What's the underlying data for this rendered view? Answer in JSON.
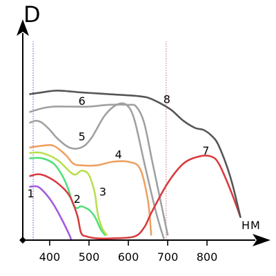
{
  "chart_data": {
    "type": "line",
    "ylabel": "D",
    "xunit_label": "НМ",
    "xlim": [
      340,
      895
    ],
    "ylim": [
      0,
      1
    ],
    "x_ticks": [
      400,
      500,
      600,
      700,
      800
    ],
    "reference_lines": [
      {
        "x": 358,
        "color": "#7b72c9"
      },
      {
        "x": 696,
        "color": "#d8868b"
      }
    ],
    "grid": false,
    "legend": "none",
    "series": [
      {
        "label": "1",
        "color": "#a25ae0",
        "x": [
          350,
          370,
          390,
          410,
          430,
          450,
          455
        ],
        "y": [
          0.3,
          0.3,
          0.26,
          0.2,
          0.12,
          0.03,
          0.0
        ]
      },
      {
        "label": "2",
        "color": "#4fe07a",
        "x": [
          350,
          380,
          410,
          430,
          445,
          460,
          470,
          480,
          500,
          515,
          530,
          540
        ],
        "y": [
          0.46,
          0.46,
          0.43,
          0.37,
          0.3,
          0.2,
          0.18,
          0.19,
          0.17,
          0.13,
          0.06,
          0.03
        ]
      },
      {
        "label": "3",
        "color": "#b8e04e",
        "x": [
          350,
          380,
          420,
          460,
          480,
          495,
          505,
          515,
          520,
          525,
          535,
          545
        ],
        "y": [
          0.49,
          0.49,
          0.45,
          0.37,
          0.39,
          0.38,
          0.34,
          0.26,
          0.18,
          0.12,
          0.06,
          0.03
        ]
      },
      {
        "label": "4",
        "color": "#f0a060",
        "x": [
          350,
          380,
          410,
          440,
          460,
          480,
          520,
          560,
          600,
          630,
          650,
          658
        ],
        "y": [
          0.52,
          0.53,
          0.53,
          0.48,
          0.43,
          0.42,
          0.42,
          0.44,
          0.44,
          0.4,
          0.22,
          0.03
        ]
      },
      {
        "label": "5",
        "color": "#a0a0a0",
        "x": [
          350,
          365,
          380,
          400,
          420,
          450,
          480,
          505,
          540,
          570,
          595,
          615,
          640,
          670,
          690
        ],
        "y": [
          0.66,
          0.67,
          0.66,
          0.62,
          0.57,
          0.52,
          0.52,
          0.57,
          0.7,
          0.76,
          0.76,
          0.68,
          0.44,
          0.16,
          0.01
        ]
      },
      {
        "label": "6",
        "color": "#a0a0a0",
        "x": [
          350,
          380,
          410,
          450,
          500,
          550,
          600,
          620,
          640,
          660,
          680,
          700
        ],
        "y": [
          0.72,
          0.74,
          0.75,
          0.75,
          0.75,
          0.76,
          0.76,
          0.75,
          0.66,
          0.45,
          0.24,
          0.03
        ]
      },
      {
        "label": "7",
        "color": "#d83a3e",
        "x": [
          350,
          370,
          390,
          420,
          450,
          470,
          480,
          495,
          520,
          560,
          615,
          640,
          660,
          700,
          740,
          780,
          810,
          830,
          860,
          885
        ],
        "y": [
          0.36,
          0.37,
          0.36,
          0.32,
          0.25,
          0.14,
          0.04,
          0.02,
          0.01,
          0.01,
          0.02,
          0.07,
          0.16,
          0.32,
          0.43,
          0.47,
          0.47,
          0.43,
          0.28,
          0.13
        ]
      },
      {
        "label": "8",
        "color": "#555555",
        "x": [
          350,
          380,
          420,
          480,
          550,
          620,
          650,
          680,
          710,
          740,
          770,
          790,
          810,
          830,
          860,
          885
        ],
        "y": [
          0.82,
          0.83,
          0.84,
          0.83,
          0.82,
          0.81,
          0.8,
          0.77,
          0.73,
          0.67,
          0.63,
          0.62,
          0.59,
          0.53,
          0.35,
          0.13
        ]
      }
    ],
    "curve_label_points": [
      {
        "label": "1",
        "x": 352,
        "y": 0.24
      },
      {
        "label": "2",
        "x": 470,
        "y": 0.21
      },
      {
        "label": "3",
        "x": 535,
        "y": 0.25
      },
      {
        "label": "4",
        "x": 575,
        "y": 0.46
      },
      {
        "label": "5",
        "x": 482,
        "y": 0.56
      },
      {
        "label": "6",
        "x": 482,
        "y": 0.76
      },
      {
        "label": "7",
        "x": 797,
        "y": 0.48
      },
      {
        "label": "8",
        "x": 698,
        "y": 0.77
      }
    ]
  }
}
